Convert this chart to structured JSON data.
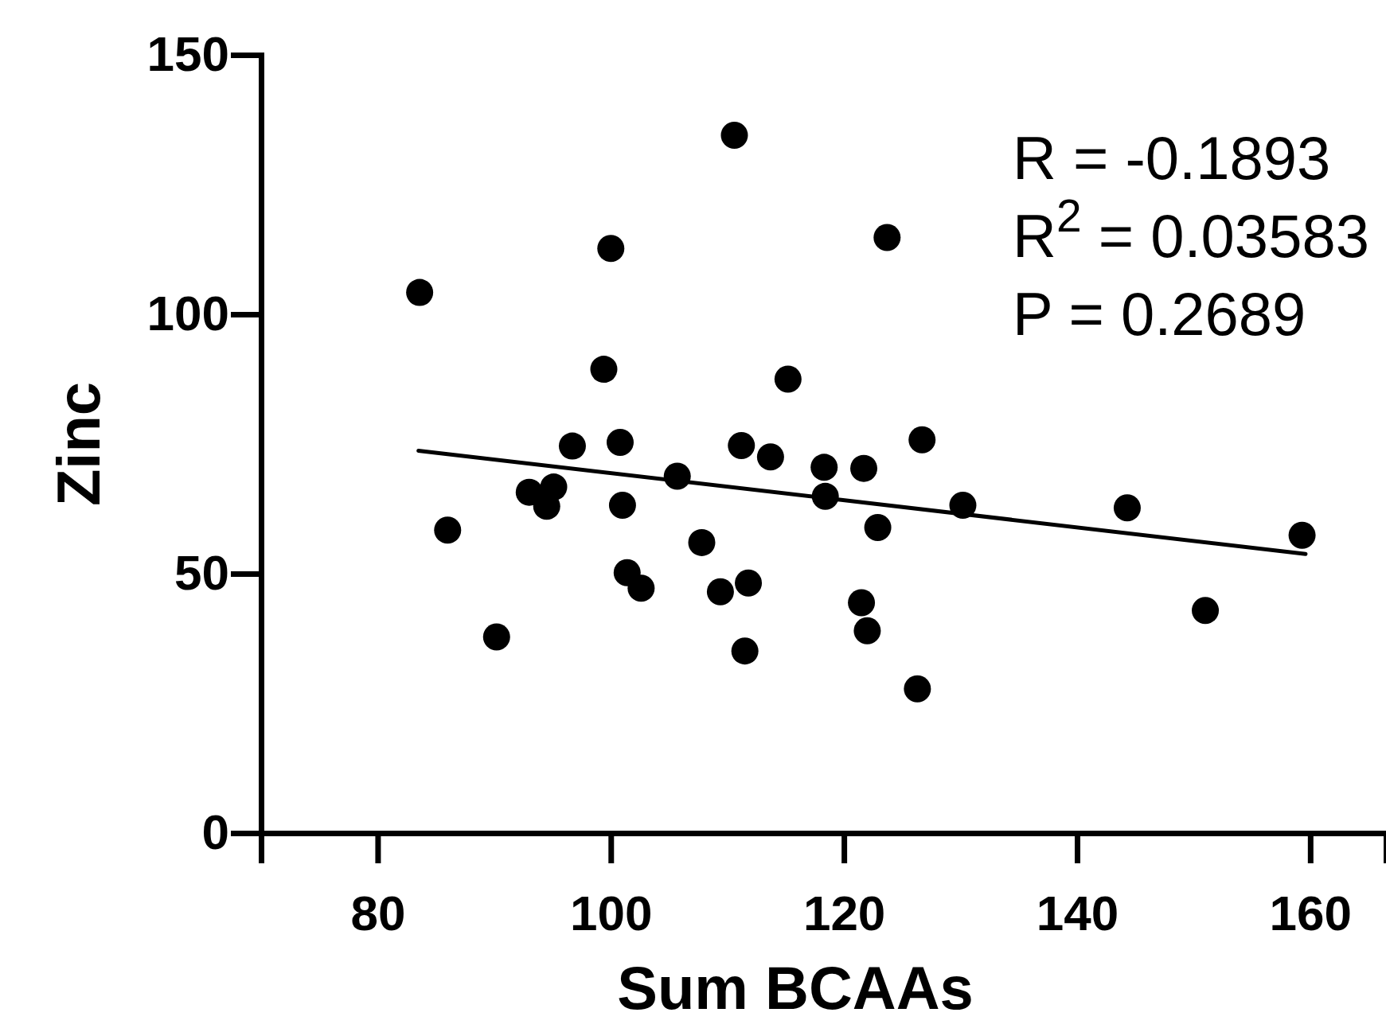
{
  "chart_data": {
    "type": "scatter",
    "xlabel": "Sum BCAAs",
    "ylabel": "Zinc",
    "xlim": [
      70,
      166.5
    ],
    "xticks": [
      80,
      100,
      120,
      140,
      160
    ],
    "ylim": [
      0,
      150
    ],
    "yticks": [
      0,
      50,
      100,
      150
    ],
    "grid": false,
    "series": [
      {
        "marker": "circle",
        "color": "#000000",
        "x": [
          83.6,
          86.0,
          90.2,
          93.0,
          94.5,
          95.1,
          96.7,
          99.4,
          100.0,
          100.8,
          101.0,
          101.4,
          102.6,
          105.7,
          107.8,
          109.4,
          110.6,
          111.2,
          111.5,
          111.8,
          113.7,
          115.2,
          118.3,
          118.4,
          121.5,
          121.7,
          122.0,
          122.9,
          123.7,
          126.3,
          126.7,
          130.2,
          144.3,
          151.0,
          159.3
        ],
        "values": [
          104.2,
          58.4,
          37.8,
          65.7,
          63.0,
          66.7,
          74.6,
          89.4,
          112.7,
          75.3,
          63.2,
          50.2,
          47.2,
          68.8,
          56.0,
          46.5,
          134.5,
          74.7,
          35.1,
          48.2,
          72.5,
          87.5,
          70.5,
          64.9,
          44.4,
          70.3,
          39.0,
          58.9,
          114.8,
          27.8,
          75.8,
          63.2,
          62.7,
          42.9,
          57.4
        ]
      },
      {
        "type": "line",
        "marker": "none",
        "color": "#000000",
        "x": [
          83.5,
          159.6
        ],
        "values": [
          73.7,
          53.8
        ]
      }
    ],
    "annotations": [
      "R = -0.1893",
      "R$^{2}$ = 0.03583",
      "P = 0.2689"
    ]
  }
}
